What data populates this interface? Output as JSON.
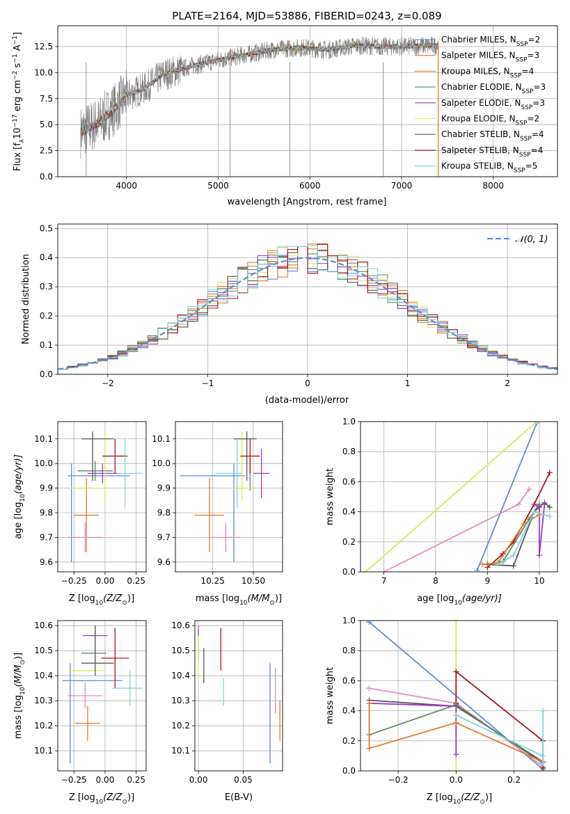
{
  "figure_title": "PLATE=2164, MJD=53886, FIBERID=0243, z=0.089",
  "colors": {
    "Chabrier MILES": "#5b8bd9",
    "Salpeter MILES": "#e07b2c",
    "Kroupa MILES": "#e17a28",
    "Chabrier ELODIE": "#5a8a5e",
    "Salpeter ELODIE": "#9b3cbf",
    "Kroupa ELODIE": "#d6ea5a",
    "Chabrier STELIB": "#545454",
    "Salpeter STELIB": "#a8141a",
    "Kroupa STELIB": "#7fd6dc",
    "pink": "#e48ac0",
    "data": "#808080"
  },
  "chart_data": [
    {
      "id": "spectrum",
      "type": "line",
      "title": "",
      "xlabel": "wavelength [Angstrom, rest frame]",
      "ylabel_main": "Flux [f",
      "ylabel_sub1": "λ",
      "ylabel_mid": "10",
      "ylabel_sup1": "−17",
      "ylabel_rest": " erg cm",
      "ylabel_sup2": "−2",
      "ylabel_s": " s",
      "ylabel_sup3": "−1",
      "ylabel_A": " A",
      "ylabel_sup4": "−1",
      "ylabel_end": "]",
      "xlim": [
        3250,
        8700
      ],
      "ylim": [
        0,
        14.5
      ],
      "xticks": [
        "4000",
        "5000",
        "6000",
        "7000",
        "8000"
      ],
      "xtick_values": [
        4000,
        5000,
        6000,
        7000,
        8000
      ],
      "yticks": [
        "0.0",
        "2.5",
        "5.0",
        "7.5",
        "10.0",
        "12.5"
      ],
      "ytick_values": [
        0,
        2.5,
        5,
        7.5,
        10,
        12.5
      ],
      "wavelength_range": [
        3500,
        7400
      ],
      "continuum": [
        [
          3500,
          4.3
        ],
        [
          3700,
          5.2
        ],
        [
          3900,
          6.8
        ],
        [
          4000,
          7.8
        ],
        [
          4200,
          8.5
        ],
        [
          4400,
          9.8
        ],
        [
          4700,
          10.6
        ],
        [
          5000,
          11.2
        ],
        [
          5300,
          11.7
        ],
        [
          5600,
          12.2
        ],
        [
          5900,
          12.4
        ],
        [
          6200,
          12.2
        ],
        [
          6500,
          12.6
        ],
        [
          6800,
          12.5
        ],
        [
          7000,
          12.5
        ],
        [
          7300,
          12.6
        ],
        [
          7400,
          12.6
        ]
      ],
      "legend": [
        {
          "name_pre": "Chabrier MILES, N",
          "sub": "SSP",
          "post": "=2",
          "color": "#5b8bd9"
        },
        {
          "name_pre": "Salpeter MILES, N",
          "sub": "SSP",
          "post": "=3",
          "color": "#e07b2c"
        },
        {
          "name_pre": "Kroupa MILES, N",
          "sub": "SSP",
          "post": "=4",
          "color": "#e17a28"
        },
        {
          "name_pre": "Chabrier ELODIE, N",
          "sub": "SSP",
          "post": "=3",
          "color": "#5a8a5e"
        },
        {
          "name_pre": "Salpeter ELODIE, N",
          "sub": "SSP",
          "post": "=3",
          "color": "#9b3cbf"
        },
        {
          "name_pre": "Kroupa ELODIE, N",
          "sub": "SSP",
          "post": "=2",
          "color": "#d6ea5a"
        },
        {
          "name_pre": "Chabrier STELIB, N",
          "sub": "SSP",
          "post": "=4",
          "color": "#545454"
        },
        {
          "name_pre": "Salpeter STELIB, N",
          "sub": "SSP",
          "post": "=4",
          "color": "#a8141a"
        },
        {
          "name_pre": "Kroupa STELIB, N",
          "sub": "SSP",
          "post": "=5",
          "color": "#7fd6dc"
        }
      ]
    },
    {
      "id": "residuals",
      "type": "bar",
      "xlabel": "(data-model)/error",
      "ylabel": "Normed distribution",
      "xlim": [
        -2.5,
        2.5
      ],
      "ylim": [
        0,
        0.515
      ],
      "xticks": [
        "−2",
        "−1",
        "0",
        "1",
        "2"
      ],
      "xtick_values": [
        -2,
        -1,
        0,
        1,
        2
      ],
      "yticks": [
        "0.0",
        "0.1",
        "0.2",
        "0.3",
        "0.4",
        "0.5"
      ],
      "ytick_values": [
        0,
        0.1,
        0.2,
        0.3,
        0.4,
        0.5
      ],
      "legend_label": "𝒩(0, 1)",
      "bin_width": 0.1
    },
    {
      "id": "age_vs_Z",
      "type": "scatter",
      "xlabel_pre": "Z [log",
      "xlabel_sub": "10",
      "xlabel_post": "(Z/Z",
      "xlabel_sub2": "⊙",
      "xlabel_end": ")]",
      "ylabel_pre": "age  [log",
      "ylabel_sub": "10",
      "ylabel_post": "(age/yr)]",
      "xlim": [
        -0.38,
        0.33
      ],
      "ylim": [
        9.56,
        10.17
      ],
      "xticks": [
        "−0.25",
        "0.00",
        "0.25"
      ],
      "xtick_values": [
        -0.25,
        0,
        0.25
      ],
      "yticks": [
        "9.6",
        "9.7",
        "9.8",
        "9.9",
        "10.0",
        "10.1"
      ],
      "ytick_values": [
        9.6,
        9.7,
        9.8,
        9.9,
        10.0,
        10.1
      ],
      "points": [
        {
          "x": -0.05,
          "y": 9.95,
          "xerr": 0.25,
          "yerr": 0.0,
          "c": "#5b8bd9"
        },
        {
          "x": -0.27,
          "y": 9.8,
          "xerr": 0.0,
          "yerr": 0.2,
          "c": "#5b8bd9"
        },
        {
          "x": -0.15,
          "y": 9.79,
          "xerr": 0.1,
          "yerr": 0.15,
          "c": "#e07b2c"
        },
        {
          "x": -0.16,
          "y": 9.7,
          "xerr": 0.14,
          "yerr": 0.06,
          "c": "#e48ac0"
        },
        {
          "x": -0.08,
          "y": 9.97,
          "xerr": 0.14,
          "yerr": 0.04,
          "c": "#5a8a5e"
        },
        {
          "x": -0.02,
          "y": 9.96,
          "xerr": 0.12,
          "yerr": 0.04,
          "c": "#9b3cbf"
        },
        {
          "x": 0.0,
          "y": 9.99,
          "xerr": 0.0,
          "yerr": 0.14,
          "c": "#d6ea5a"
        },
        {
          "x": -0.15,
          "y": 9.9,
          "xerr": 0.14,
          "yerr": 0.0,
          "c": "#d6ea5a"
        },
        {
          "x": -0.06,
          "y": 10.1,
          "xerr": 0.13,
          "yerr": 0.0,
          "c": "#545454"
        },
        {
          "x": -0.1,
          "y": 10.03,
          "xerr": 0.0,
          "yerr": 0.1,
          "c": "#545454"
        },
        {
          "x": 0.08,
          "y": 10.03,
          "xerr": 0.1,
          "yerr": 0.07,
          "c": "#a8141a"
        },
        {
          "x": 0.2,
          "y": 9.96,
          "xerr": 0.1,
          "yerr": 0.0,
          "c": "#7fd6dc"
        },
        {
          "x": 0.16,
          "y": 9.96,
          "xerr": 0.0,
          "yerr": 0.14,
          "c": "#7fd6dc"
        }
      ]
    },
    {
      "id": "age_vs_mass",
      "type": "scatter",
      "xlabel_pre": "mass [log",
      "xlabel_sub": "10",
      "xlabel_post": "(M/M",
      "xlabel_sub2": "⊙",
      "xlabel_end": ")]",
      "xlim": [
        10.02,
        10.68
      ],
      "ylim": [
        9.56,
        10.17
      ],
      "xticks": [
        "10.25",
        "10.50"
      ],
      "xtick_values": [
        10.25,
        10.5
      ],
      "yticks": [
        "9.6",
        "9.7",
        "9.8",
        "9.9",
        "10.0",
        "10.1"
      ],
      "ytick_values": [
        9.6,
        9.7,
        9.8,
        9.9,
        10.0,
        10.1
      ],
      "points": [
        {
          "x": 10.25,
          "y": 9.95,
          "xerr": 0.2,
          "yerr": 0.0,
          "c": "#5b8bd9"
        },
        {
          "x": 10.38,
          "y": 9.8,
          "xerr": 0.0,
          "yerr": 0.2,
          "c": "#5b8bd9"
        },
        {
          "x": 10.23,
          "y": 9.79,
          "xerr": 0.09,
          "yerr": 0.15,
          "c": "#e07b2c"
        },
        {
          "x": 10.33,
          "y": 9.7,
          "xerr": 0.09,
          "yerr": 0.06,
          "c": "#e48ac0"
        },
        {
          "x": 10.48,
          "y": 9.97,
          "xerr": 0.0,
          "yerr": 0.08,
          "c": "#5a8a5e"
        },
        {
          "x": 10.55,
          "y": 9.96,
          "xerr": 0.05,
          "yerr": 0.1,
          "c": "#9b3cbf"
        },
        {
          "x": 10.43,
          "y": 9.99,
          "xerr": 0.0,
          "yerr": 0.14,
          "c": "#d6ea5a"
        },
        {
          "x": 10.43,
          "y": 9.9,
          "xerr": 0.07,
          "yerr": 0.0,
          "c": "#d6ea5a"
        },
        {
          "x": 10.45,
          "y": 10.1,
          "xerr": 0.07,
          "yerr": 0.0,
          "c": "#545454"
        },
        {
          "x": 10.46,
          "y": 10.03,
          "xerr": 0.0,
          "yerr": 0.1,
          "c": "#545454"
        },
        {
          "x": 10.48,
          "y": 10.03,
          "xerr": 0.06,
          "yerr": 0.07,
          "c": "#a8141a"
        },
        {
          "x": 10.35,
          "y": 9.96,
          "xerr": 0.08,
          "yerr": 0.0,
          "c": "#7fd6dc"
        },
        {
          "x": 10.4,
          "y": 9.96,
          "xerr": 0.0,
          "yerr": 0.14,
          "c": "#7fd6dc"
        }
      ]
    },
    {
      "id": "weight_vs_age",
      "type": "line",
      "xlabel_pre": "age  [log",
      "xlabel_sub": "10",
      "xlabel_post": "(age/yr)]",
      "ylabel": "mass weight",
      "xlim": [
        6.55,
        10.35
      ],
      "ylim": [
        0,
        1
      ],
      "xticks": [
        "7",
        "8",
        "9",
        "10"
      ],
      "xtick_values": [
        7,
        8,
        9,
        10
      ],
      "yticks": [
        "0.0",
        "0.2",
        "0.4",
        "0.6",
        "0.8",
        "1.0"
      ],
      "ytick_values": [
        0,
        0.2,
        0.4,
        0.6,
        0.8,
        1.0
      ],
      "series": [
        {
          "c": "#5b8bd9",
          "x": [
            8.8,
            9.95
          ],
          "y": [
            0.01,
            0.99
          ]
        },
        {
          "c": "#d6ea5a",
          "x": [
            6.65,
            9.95
          ],
          "y": [
            0.0,
            1.0
          ]
        },
        {
          "c": "#e48ac0",
          "x": [
            7.0,
            9.6,
            9.8
          ],
          "y": [
            0.0,
            0.45,
            0.55
          ]
        },
        {
          "c": "#a8141a",
          "x": [
            9.0,
            9.3,
            9.5,
            9.9,
            10.2
          ],
          "y": [
            0.03,
            0.12,
            0.2,
            0.45,
            0.66
          ]
        },
        {
          "c": "#545454",
          "x": [
            9.0,
            9.5,
            9.9,
            10.1,
            10.2
          ],
          "y": [
            0.05,
            0.04,
            0.4,
            0.46,
            0.43
          ]
        },
        {
          "c": "#5a8a5e",
          "x": [
            9.0,
            9.3,
            9.8,
            10.0
          ],
          "y": [
            0.05,
            0.07,
            0.35,
            0.45
          ]
        },
        {
          "c": "#9b3cbf",
          "x": [
            9.9,
            10.0,
            10.0,
            10.1
          ],
          "y": [
            0.45,
            0.43,
            0.11,
            0.45
          ]
        },
        {
          "c": "#e07b2c",
          "x": [
            8.9,
            9.2,
            9.7,
            10.0
          ],
          "y": [
            0.05,
            0.06,
            0.32,
            0.38
          ]
        },
        {
          "c": "#7fd6dc",
          "x": [
            9.2,
            9.5,
            9.9,
            10.2
          ],
          "y": [
            0.05,
            0.11,
            0.4,
            0.37
          ]
        }
      ]
    },
    {
      "id": "mass_vs_Z",
      "type": "scatter",
      "xlabel_pre": "Z [log",
      "xlabel_sub": "10",
      "xlabel_post": "(Z/Z",
      "xlabel_sub2": "⊙",
      "xlabel_end": ")]",
      "ylabel_pre": "mass [log",
      "ylabel_sub": "10",
      "ylabel_post": "(M/M",
      "ylabel_sub2": "⊙",
      "ylabel_end": ")]",
      "xlim": [
        -0.38,
        0.33
      ],
      "ylim": [
        10.02,
        10.62
      ],
      "xticks": [
        "−0.25",
        "0.00",
        "0.25"
      ],
      "xtick_values": [
        -0.25,
        0,
        0.25
      ],
      "yticks": [
        "10.1",
        "10.2",
        "10.3",
        "10.4",
        "10.5",
        "10.6"
      ],
      "ytick_values": [
        10.1,
        10.2,
        10.3,
        10.4,
        10.5,
        10.6
      ],
      "points": [
        {
          "x": -0.1,
          "y": 10.38,
          "xerr": 0.24,
          "yerr": 0.0,
          "c": "#5b8bd9"
        },
        {
          "x": -0.28,
          "y": 10.25,
          "xerr": 0.0,
          "yerr": 0.2,
          "c": "#5b8bd9"
        },
        {
          "x": -0.14,
          "y": 10.21,
          "xerr": 0.1,
          "yerr": 0.07,
          "c": "#e07b2c"
        },
        {
          "x": -0.16,
          "y": 10.32,
          "xerr": 0.14,
          "yerr": 0.05,
          "c": "#e48ac0"
        },
        {
          "x": -0.09,
          "y": 10.49,
          "xerr": 0.1,
          "yerr": 0.0,
          "c": "#5a8a5e"
        },
        {
          "x": -0.08,
          "y": 10.56,
          "xerr": 0.1,
          "yerr": 0.04,
          "c": "#9b3cbf"
        },
        {
          "x": -0.15,
          "y": 10.42,
          "xerr": 0.14,
          "yerr": 0.0,
          "c": "#d6ea5a"
        },
        {
          "x": -0.06,
          "y": 10.45,
          "xerr": 0.13,
          "yerr": 0.0,
          "c": "#545454"
        },
        {
          "x": -0.08,
          "y": 10.5,
          "xerr": 0.0,
          "yerr": 0.1,
          "c": "#545454"
        },
        {
          "x": 0.08,
          "y": 10.47,
          "xerr": 0.11,
          "yerr": 0.12,
          "c": "#a8141a"
        },
        {
          "x": 0.18,
          "y": 10.35,
          "xerr": 0.12,
          "yerr": 0.0,
          "c": "#7fd6dc"
        },
        {
          "x": 0.2,
          "y": 10.35,
          "xerr": 0.0,
          "yerr": 0.07,
          "c": "#7fd6dc"
        }
      ]
    },
    {
      "id": "mass_vs_EBV",
      "type": "scatter",
      "xlabel": "E(B-V)",
      "xlim": [
        -0.004,
        0.094
      ],
      "ylim": [
        10.02,
        10.62
      ],
      "xticks": [
        "0.00",
        "0.05"
      ],
      "xtick_values": [
        0,
        0.05
      ],
      "yticks": [
        "10.1",
        "10.2",
        "10.3",
        "10.4",
        "10.5",
        "10.6"
      ],
      "ytick_values": [
        10.1,
        10.2,
        10.3,
        10.4,
        10.5,
        10.6
      ],
      "segments": [
        {
          "x": 0.0,
          "y1": 10.46,
          "y2": 10.6,
          "c": "#9b3cbf"
        },
        {
          "x": 0.0,
          "y1": 10.39,
          "y2": 10.56,
          "c": "#d6ea5a"
        },
        {
          "x": 0.006,
          "y1": 10.37,
          "y2": 10.51,
          "c": "#545454"
        },
        {
          "x": 0.025,
          "y1": 10.42,
          "y2": 10.59,
          "c": "#a8141a"
        },
        {
          "x": 0.028,
          "y1": 10.28,
          "y2": 10.39,
          "c": "#7fd6dc"
        },
        {
          "x": 0.08,
          "y1": 10.05,
          "y2": 10.45,
          "c": "#5b8bd9"
        },
        {
          "x": 0.086,
          "y1": 10.25,
          "y2": 10.43,
          "c": "#e48ac0"
        },
        {
          "x": 0.091,
          "y1": 10.14,
          "y2": 10.3,
          "c": "#e07b2c"
        }
      ]
    },
    {
      "id": "weight_vs_Z",
      "type": "line",
      "xlabel_pre": "Z [log",
      "xlabel_sub": "10",
      "xlabel_post": "(Z/Z",
      "xlabel_sub2": "⊙",
      "xlabel_end": ")]",
      "ylabel": "mass weight",
      "xlim": [
        -0.33,
        0.35
      ],
      "ylim": [
        0,
        1
      ],
      "xticks": [
        "−0.2",
        "0.0",
        "0.2"
      ],
      "xtick_values": [
        -0.2,
        0,
        0.2
      ],
      "yticks": [
        "0.0",
        "0.2",
        "0.4",
        "0.6",
        "0.8",
        "1.0"
      ],
      "ytick_values": [
        0,
        0.2,
        0.4,
        0.6,
        0.8,
        1.0
      ],
      "series": [
        {
          "c": "#5b8bd9",
          "x": [
            -0.3,
            0.3
          ],
          "y": [
            0.99,
            0.01
          ]
        },
        {
          "c": "#d6ea5a",
          "x": [
            0.0,
            0.0
          ],
          "y": [
            0.0,
            1.0
          ]
        },
        {
          "c": "#e48ac0",
          "x": [
            -0.3,
            0.0,
            0.3
          ],
          "y": [
            0.55,
            0.45,
            0.03
          ]
        },
        {
          "c": "#a8141a",
          "x": [
            0.0,
            0.0,
            0.3,
            0.3
          ],
          "y": [
            0.45,
            0.66,
            0.2,
            0.02
          ]
        },
        {
          "c": "#545454",
          "x": [
            -0.3,
            0.0,
            0.3
          ],
          "y": [
            0.47,
            0.43,
            0.06
          ]
        },
        {
          "c": "#5a8a5e",
          "x": [
            -0.3,
            0.0,
            0.3
          ],
          "y": [
            0.24,
            0.44,
            0.05
          ]
        },
        {
          "c": "#9b3cbf",
          "x": [
            -0.3,
            0.0,
            0.0
          ],
          "y": [
            0.45,
            0.43,
            0.11
          ]
        },
        {
          "c": "#e07b2c",
          "x": [
            -0.3,
            -0.3,
            0.0,
            0.3
          ],
          "y": [
            0.45,
            0.15,
            0.32,
            0.06
          ]
        },
        {
          "c": "#7fd6dc",
          "x": [
            0.0,
            0.3,
            0.3,
            0.3
          ],
          "y": [
            0.37,
            0.1,
            0.4,
            0.05
          ]
        }
      ]
    }
  ]
}
